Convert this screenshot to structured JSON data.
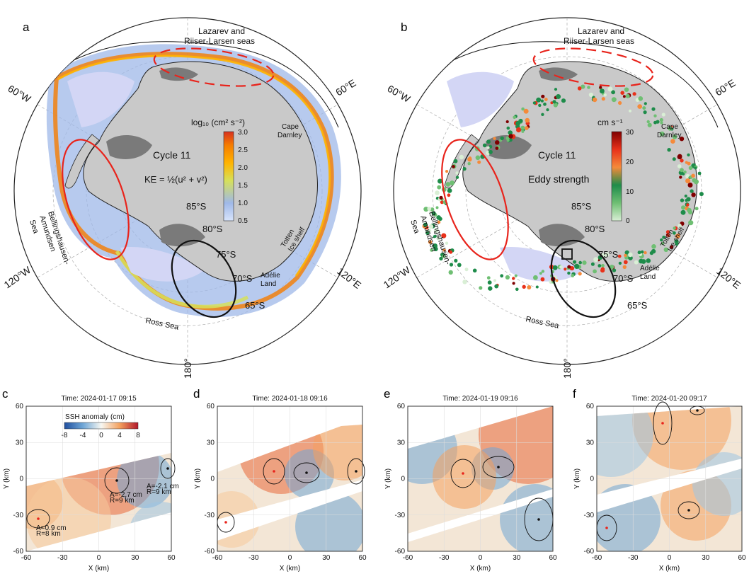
{
  "figure": {
    "panels": {
      "a": {
        "label": "a",
        "cycle": "Cycle 11",
        "cbar_title": "log₁₀ (cm² s⁻²)",
        "formula": "KE = ½(u² + v²)",
        "cbar_ticks": [
          "3.0",
          "2.5",
          "2.0",
          "1.5",
          "1.0",
          "0.5"
        ],
        "cbar_colors": [
          "#d7301f",
          "#f57c00",
          "#ffb300",
          "#d6e05a",
          "#9fb8e8",
          "#7f9bdb"
        ],
        "cbar_range": [
          0.5,
          3.0
        ]
      },
      "b": {
        "label": "b",
        "cycle": "Cycle 11",
        "cbar_title": "cm s⁻¹",
        "metric": "Eddy strength",
        "cbar_ticks": [
          "30",
          "20",
          "10",
          "0"
        ],
        "cbar_colors": [
          "#7f0000",
          "#e8311a",
          "#f58a3a",
          "#1e8c4a",
          "#6fbf73",
          "#d9efd5"
        ],
        "cbar_range": [
          0,
          30
        ]
      }
    },
    "map_labels": {
      "lazarev": [
        "Lazarev and",
        "Riiser-Larsen seas"
      ],
      "cape_darnley": [
        "Cape",
        "Darnley"
      ],
      "totten": [
        "Totten",
        "Ice shelf"
      ],
      "adelie": [
        "Adélie",
        "Land"
      ],
      "ross": "Ross Sea",
      "bellingshausen": [
        "Bellingshausen-",
        "Amundsen",
        "Sea"
      ],
      "lon_60w": "60°W",
      "lon_60e": "60°E",
      "lon_120w": "120°W",
      "lon_120e": "120°E",
      "lon_180": "180°",
      "lat_85": "85°S",
      "lat_80": "80°S",
      "lat_75": "75°S",
      "lat_70": "70°S",
      "lat_65": "65°S"
    },
    "ssh_panels": [
      {
        "label": "c",
        "time": "Time: 2024-01-17 09:15"
      },
      {
        "label": "d",
        "time": "Time: 2024-01-18 09:16"
      },
      {
        "label": "e",
        "time": "Time: 2024-01-19 09:16"
      },
      {
        "label": "f",
        "time": "Time: 2024-01-20 09:17"
      }
    ],
    "ssh_cbar": {
      "title": "SSH anomaly (cm)",
      "ticks": [
        "-8",
        "-4",
        "0",
        "4",
        "8"
      ]
    },
    "ssh_axes": {
      "xlabel": "X (km)",
      "ylabel": "Y (km)",
      "xticks": [
        "-60",
        "-30",
        "0",
        "30",
        "60"
      ],
      "yticks": [
        "60",
        "30",
        "0",
        "-30",
        "-60"
      ]
    },
    "eddy_annotations": [
      {
        "line1": "A=-2.7 cm",
        "line2": "R=9 km"
      },
      {
        "line1": "A=-2.1 cm",
        "line2": "R=9 km"
      },
      {
        "line1": "A=0.9 cm",
        "line2": "R=8 km"
      }
    ]
  }
}
